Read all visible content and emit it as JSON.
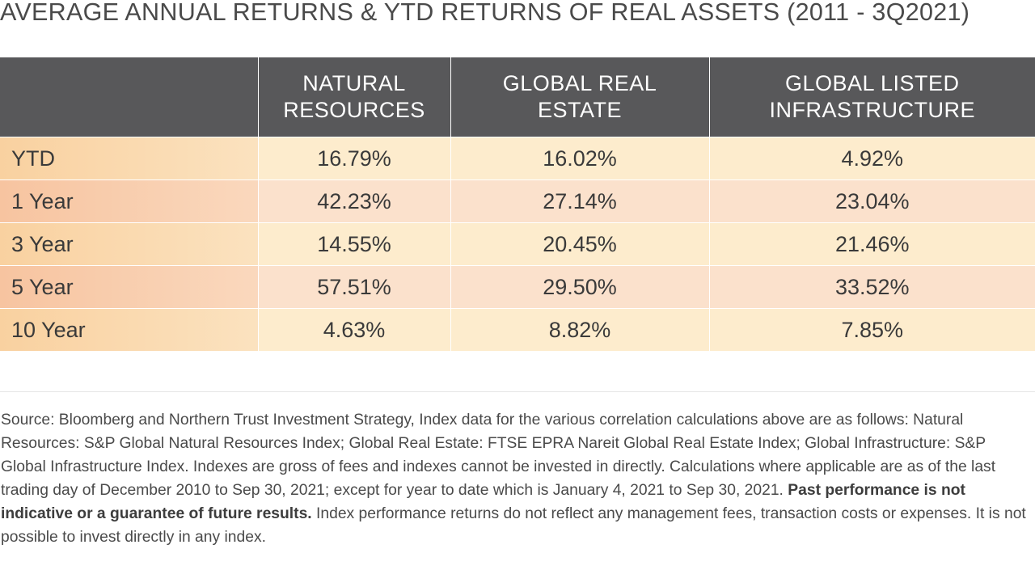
{
  "page": {
    "title": "AVERAGE ANNUAL RETURNS & YTD RETURNS OF REAL ASSETS (2011 - 3Q2021)"
  },
  "chart_data": {
    "type": "table",
    "title": "AVERAGE ANNUAL RETURNS & YTD RETURNS OF REAL ASSETS (2011 - 3Q2021)",
    "columns": [
      {
        "line1": "NATURAL",
        "line2": "RESOURCES"
      },
      {
        "line1": "GLOBAL REAL",
        "line2": "ESTATE"
      },
      {
        "line1": "GLOBAL LISTED",
        "line2": "INFRASTRUCTURE"
      }
    ],
    "rows": [
      {
        "label": "YTD",
        "values": [
          "16.79%",
          "16.02%",
          "4.92%"
        ]
      },
      {
        "label": "1 Year",
        "values": [
          "42.23%",
          "27.14%",
          "23.04%"
        ]
      },
      {
        "label": "3 Year",
        "values": [
          "14.55%",
          "20.45%",
          "21.46%"
        ]
      },
      {
        "label": "5 Year",
        "values": [
          "57.51%",
          "29.50%",
          "33.52%"
        ]
      },
      {
        "label": "10 Year",
        "values": [
          "4.63%",
          "8.82%",
          "7.85%"
        ]
      }
    ],
    "colors": {
      "header_bg": "#58585a",
      "header_text": "#ffffff",
      "row_light": "#fdeccd",
      "row_pink": "#fbe1cc",
      "label_light": "#f9d1a0",
      "label_pink": "#f7c4a0"
    }
  },
  "footnote": {
    "text_before": "Source: Bloomberg and Northern Trust Investment Strategy, Index data for the various correlation calculations above are as follows: Natural Resources: S&P Global Natural Resources Index; Global Real Estate: FTSE EPRA Nareit Global Real Estate Index; Global Infrastructure: S&P Global Infrastructure Index. Indexes are gross of fees and indexes cannot be invested in directly. Calculations where applicable are as of the last trading day of December 2010 to Sep 30, 2021; except for year to date which is January 4, 2021 to Sep 30, 2021. ",
    "bold": "Past performance is not indicative or a guarantee of future results.",
    "text_after": " Index performance returns do not reflect any management fees, transaction costs or expenses. It is not possible to invest directly in any index."
  }
}
